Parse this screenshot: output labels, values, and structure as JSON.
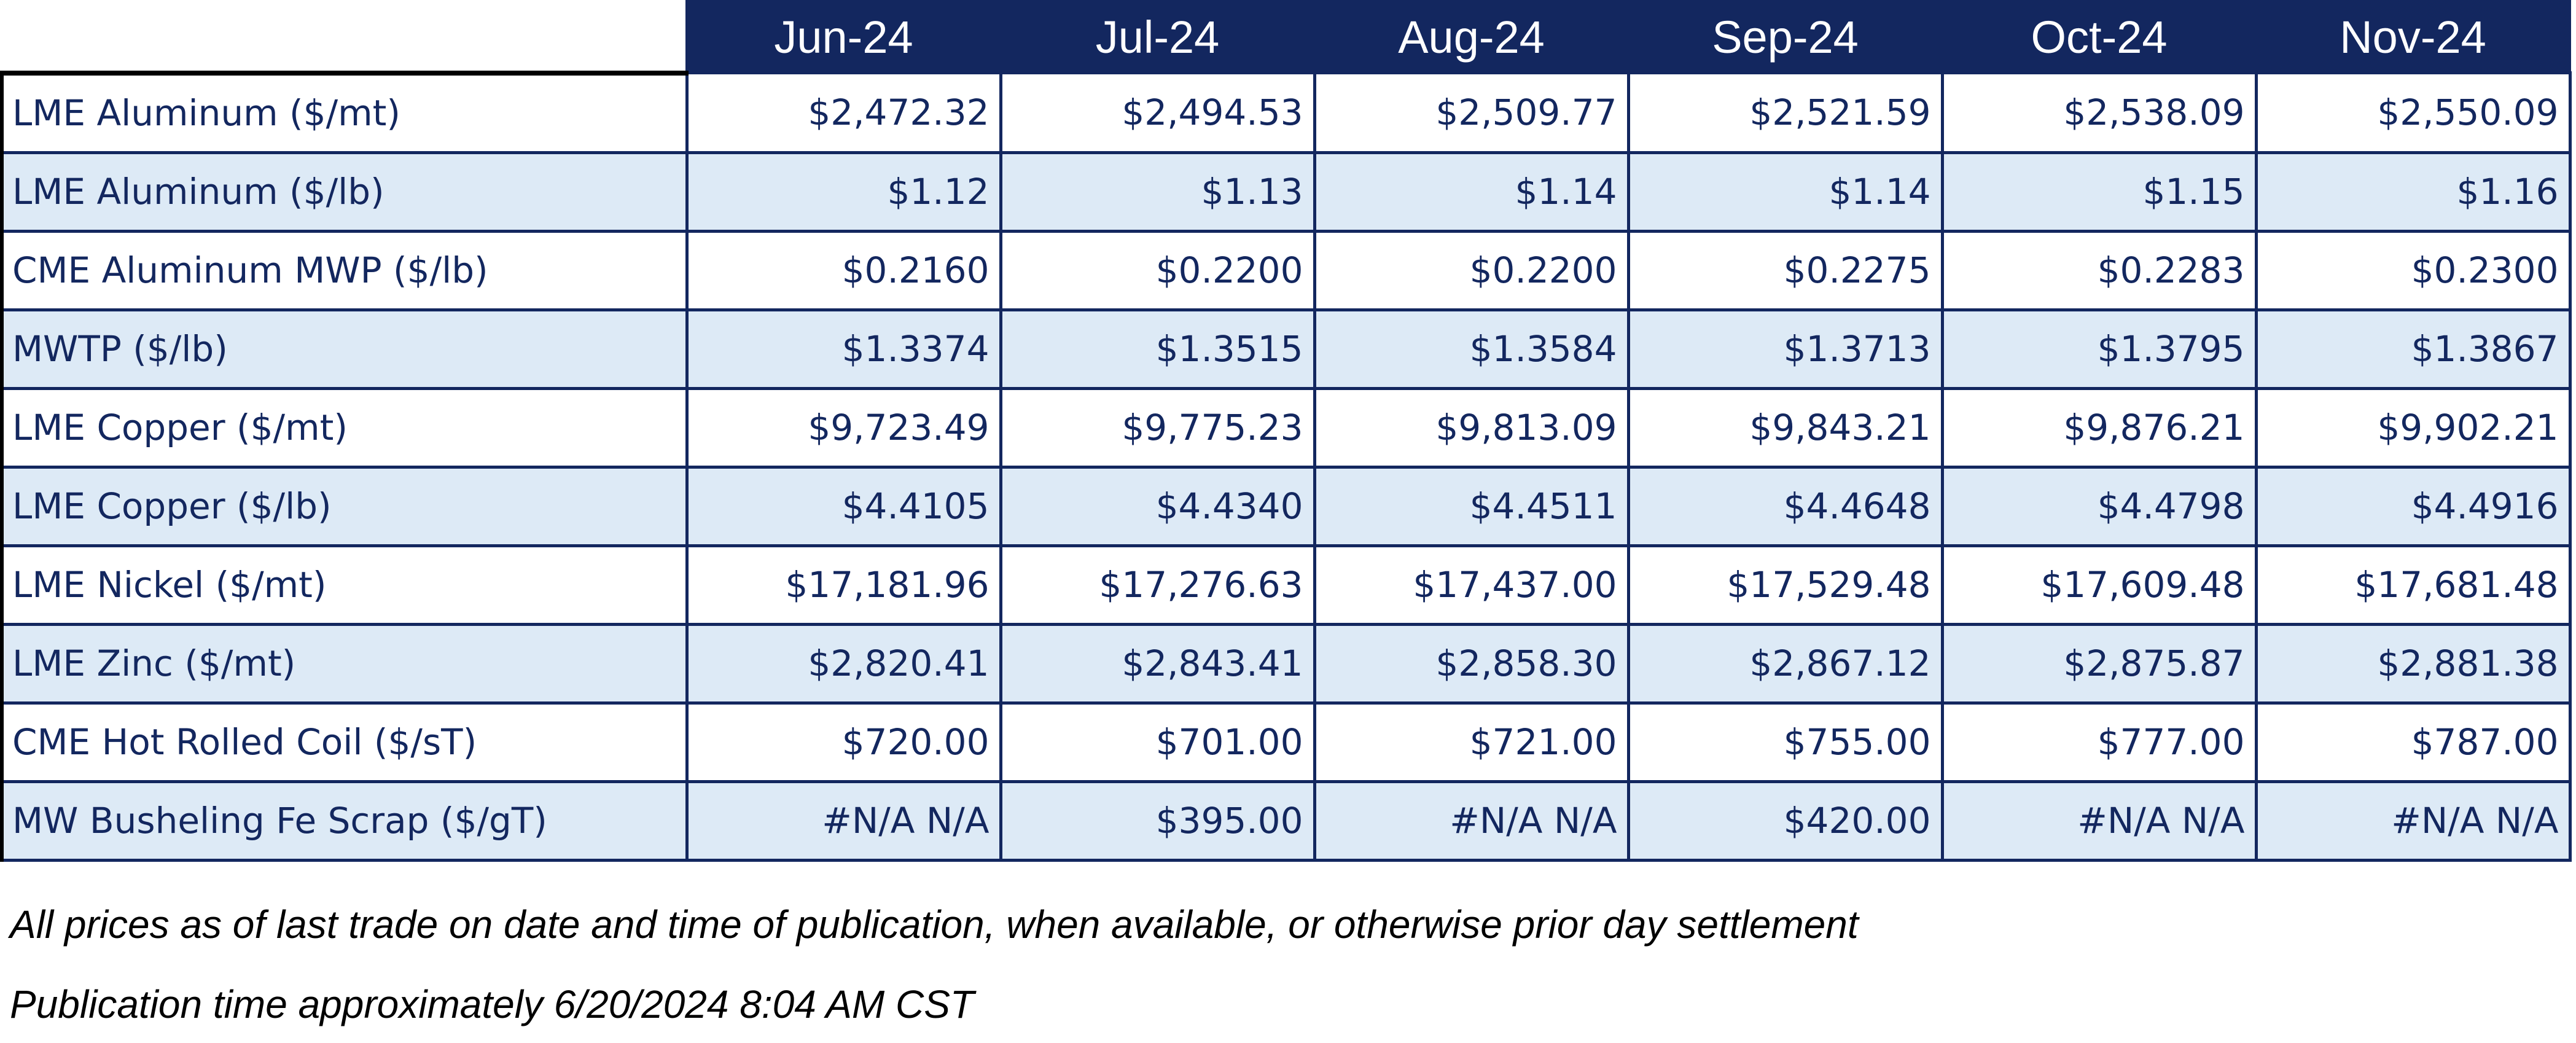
{
  "table": {
    "months": [
      "Jun-24",
      "Jul-24",
      "Aug-24",
      "Sep-24",
      "Oct-24",
      "Nov-24"
    ],
    "rows": [
      {
        "label": "LME Aluminum ($/mt)",
        "values": [
          "$2,472.32",
          "$2,494.53",
          "$2,509.77",
          "$2,521.59",
          "$2,538.09",
          "$2,550.09"
        ]
      },
      {
        "label": "LME Aluminum ($/lb)",
        "values": [
          "$1.12",
          "$1.13",
          "$1.14",
          "$1.14",
          "$1.15",
          "$1.16"
        ]
      },
      {
        "label": "CME Aluminum MWP ($/lb)",
        "values": [
          "$0.2160",
          "$0.2200",
          "$0.2200",
          "$0.2275",
          "$0.2283",
          "$0.2300"
        ]
      },
      {
        "label": "MWTP ($/lb)",
        "values": [
          "$1.3374",
          "$1.3515",
          "$1.3584",
          "$1.3713",
          "$1.3795",
          "$1.3867"
        ]
      },
      {
        "label": "LME Copper ($/mt)",
        "values": [
          "$9,723.49",
          "$9,775.23",
          "$9,813.09",
          "$9,843.21",
          "$9,876.21",
          "$9,902.21"
        ]
      },
      {
        "label": "LME Copper ($/lb)",
        "values": [
          "$4.4105",
          "$4.4340",
          "$4.4511",
          "$4.4648",
          "$4.4798",
          "$4.4916"
        ]
      },
      {
        "label": "LME Nickel ($/mt)",
        "values": [
          "$17,181.96",
          "$17,276.63",
          "$17,437.00",
          "$17,529.48",
          "$17,609.48",
          "$17,681.48"
        ]
      },
      {
        "label": "LME Zinc ($/mt)",
        "values": [
          "$2,820.41",
          "$2,843.41",
          "$2,858.30",
          "$2,867.12",
          "$2,875.87",
          "$2,881.38"
        ]
      },
      {
        "label": "CME Hot Rolled Coil ($/sT)",
        "values": [
          "$720.00",
          "$701.00",
          "$721.00",
          "$755.00",
          "$777.00",
          "$787.00"
        ]
      },
      {
        "label": "MW Busheling Fe Scrap ($/gT)",
        "values": [
          "#N/A N/A",
          "$395.00",
          "#N/A N/A",
          "$420.00",
          "#N/A N/A",
          "#N/A N/A"
        ]
      }
    ]
  },
  "footnotes": {
    "line1": "All prices as of last trade on date and time of publication, when available, or otherwise prior day settlement",
    "line2": "Publication time approximately 6/20/2024 8:04 AM CST"
  },
  "colors": {
    "header_bg": "#13275f",
    "header_text": "#ffffff",
    "row_alt_bg": "#ddeaf6",
    "cell_text": "#13275f",
    "border": "#13275f"
  }
}
